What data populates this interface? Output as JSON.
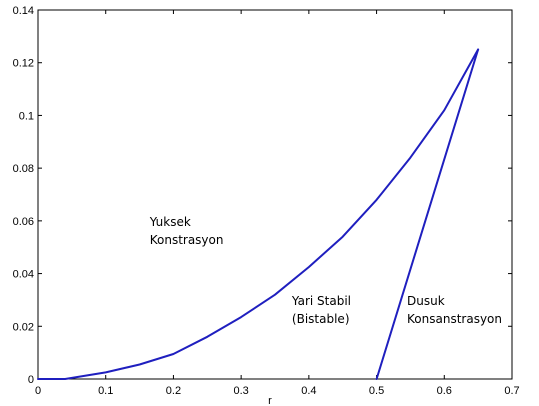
{
  "chart_data": {
    "type": "line",
    "title": "",
    "xlabel": "r",
    "ylabel": "",
    "xlim": [
      0,
      0.7
    ],
    "ylim": [
      0,
      0.14
    ],
    "xticks": [
      "0",
      "0.1",
      "0.2",
      "0.3",
      "0.4",
      "0.5",
      "0.6",
      "0.7"
    ],
    "yticks": [
      "0",
      "0.02",
      "0.04",
      "0.06",
      "0.08",
      "0.1",
      "0.12",
      "0.14"
    ],
    "grid": false,
    "line_color": "#1f1fbf",
    "series": [
      {
        "x": [
          0,
          0.04,
          0.1,
          0.15,
          0.2,
          0.25,
          0.3,
          0.35,
          0.4,
          0.45,
          0.5,
          0.55,
          0.6,
          0.65
        ],
        "y": [
          0,
          0,
          0.0025,
          0.0055,
          0.0095,
          0.016,
          0.0235,
          0.032,
          0.0425,
          0.054,
          0.068,
          0.084,
          0.102,
          0.125
        ]
      },
      {
        "x": [
          0.5,
          0.65
        ],
        "y": [
          0,
          0.125
        ]
      }
    ],
    "annotations": [
      {
        "lines": [
          "Yuksek",
          "Konstrasyon"
        ],
        "x": 0.165,
        "y": 0.058
      },
      {
        "lines": [
          "Yari Stabil",
          "(Bistable)"
        ],
        "x": 0.375,
        "y": 0.028
      },
      {
        "lines": [
          "Dusuk",
          "Konsanstrasyon"
        ],
        "x": 0.545,
        "y": 0.028
      }
    ]
  }
}
